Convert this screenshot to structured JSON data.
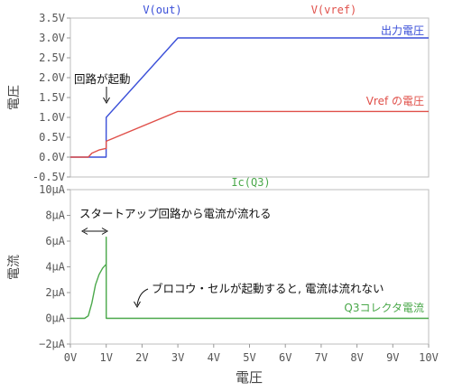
{
  "chart_data": [
    {
      "type": "line",
      "title_series": [
        "V(out)",
        "V(vref)"
      ],
      "xlabel": "",
      "ylabel": "電圧",
      "xlim": [
        0,
        10
      ],
      "ylim": [
        -0.5,
        3.5
      ],
      "yticks": [
        -0.5,
        0.0,
        0.5,
        1.0,
        1.5,
        2.0,
        2.5,
        3.0,
        3.5
      ],
      "ytick_labels": [
        "-0.5V",
        "0.0V",
        "0.5V",
        "1.0V",
        "1.5V",
        "2.0V",
        "2.5V",
        "3.0V",
        "3.5V"
      ],
      "series": [
        {
          "name": "V(out)",
          "legend": "出力電圧",
          "color": "#3a4fd8",
          "x": [
            0.0,
            0.997,
            0.998,
            1.0,
            3.0,
            10.0
          ],
          "y": [
            0.0,
            0.0,
            0.05,
            1.0,
            3.0,
            3.0
          ]
        },
        {
          "name": "V(vref)",
          "legend": "Vref の電圧",
          "color": "#e0504a",
          "x": [
            0.0,
            0.5,
            0.6,
            0.8,
            1.0,
            1.0,
            3.0,
            10.0
          ],
          "y": [
            0.0,
            0.0,
            0.1,
            0.18,
            0.22,
            0.4,
            1.15,
            1.15
          ]
        }
      ],
      "annotations": [
        {
          "text": "回路が起動"
        }
      ]
    },
    {
      "type": "line",
      "title_series": [
        "Ic(Q3)"
      ],
      "xlabel": "電圧",
      "ylabel": "電流",
      "xlim": [
        0,
        10
      ],
      "ylim": [
        -2,
        10
      ],
      "yticks": [
        -2,
        0,
        2,
        4,
        6,
        8,
        10
      ],
      "ytick_labels": [
        "−2μA",
        "0μA",
        "2μA",
        "4μA",
        "6μA",
        "8μA",
        "10μA"
      ],
      "xticks": [
        0,
        1,
        2,
        3,
        4,
        5,
        6,
        7,
        8,
        9,
        10
      ],
      "xtick_labels": [
        "0V",
        "1V",
        "2V",
        "3V",
        "4V",
        "5V",
        "6V",
        "7V",
        "8V",
        "9V",
        "10V"
      ],
      "series": [
        {
          "name": "Ic(Q3)",
          "legend": "Q3コレクタ電流",
          "color": "#4aa84a",
          "x": [
            0.0,
            0.4,
            0.5,
            0.6,
            0.7,
            0.8,
            0.9,
            1.0,
            1.0,
            1.001,
            10.0
          ],
          "y": [
            0.0,
            0.0,
            0.2,
            1.2,
            2.6,
            3.4,
            3.9,
            4.2,
            6.3,
            0.0,
            0.0
          ]
        }
      ],
      "annotations": [
        {
          "text": "スタートアップ回路から電流が流れる"
        },
        {
          "text": "ブロコウ・セルが起動すると, 電流は流れない"
        }
      ]
    }
  ]
}
